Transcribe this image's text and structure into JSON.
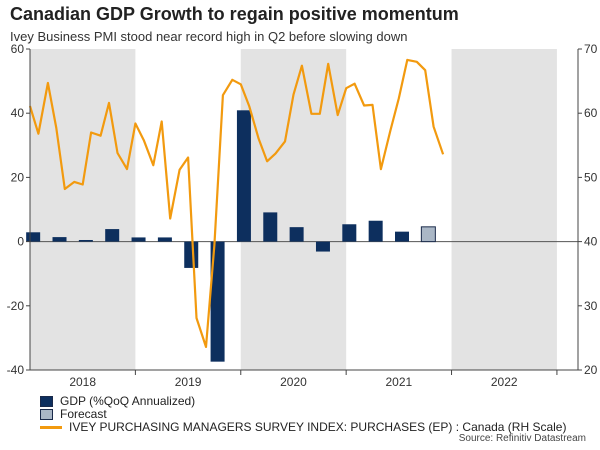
{
  "title": "Canadian GDP Growth to regain positive momentum",
  "subtitle": "Ivey Business PMI stood near record high in Q2 before slowing down",
  "source": "Source: Refinitiv Datastream",
  "colors": {
    "gdp": "#0d2f5e",
    "forecast": "#aab7c6",
    "pmi": "#f29a0f",
    "shade": "#e3e3e3"
  },
  "legend": [
    {
      "key": "gdp",
      "label": "GDP (%QoQ Annualized)"
    },
    {
      "key": "forecast",
      "label": "Forecast"
    },
    {
      "key": "pmi",
      "label": "IVEY PURCHASING MANAGERS SURVEY INDEX: PURCHASES (EP) : Canada (RH Scale)"
    }
  ],
  "chart_data": {
    "type": "bar+line",
    "x_range": [
      2017.5,
      2022.7
    ],
    "left_axis": {
      "ylim": [
        -40,
        60
      ],
      "ticks": [
        -40,
        -20,
        0,
        20,
        40,
        60
      ]
    },
    "right_axis": {
      "ylim": [
        20,
        70
      ],
      "ticks": [
        20,
        30,
        40,
        50,
        60,
        70
      ]
    },
    "year_ticks": [
      "2018",
      "2019",
      "2020",
      "2021",
      "2022"
    ],
    "shaded_years": [
      2018,
      2020,
      2022
    ],
    "gdp_bars": [
      {
        "t": 2017.53,
        "v": 2.9
      },
      {
        "t": 2017.78,
        "v": 1.4
      },
      {
        "t": 2018.03,
        "v": 0.5
      },
      {
        "t": 2018.28,
        "v": 3.9
      },
      {
        "t": 2018.53,
        "v": 1.3
      },
      {
        "t": 2018.78,
        "v": 1.3
      },
      {
        "t": 2019.03,
        "v": -8.2
      },
      {
        "t": 2019.28,
        "v": -37.4
      },
      {
        "t": 2019.53,
        "v": 40.9
      },
      {
        "t": 2019.78,
        "v": 9.1
      },
      {
        "t": 2020.03,
        "v": 4.5
      },
      {
        "t": 2020.28,
        "v": -3.1
      },
      {
        "t": 2020.53,
        "v": 5.4
      },
      {
        "t": 2020.78,
        "v": 6.5
      },
      {
        "t": 2021.03,
        "v": 3.1
      },
      {
        "t": 2021.28,
        "v": 4.6,
        "forecast": true
      }
    ],
    "pmi_series": {
      "name": "IVEY PURCHASING MANAGERS SURVEY INDEX: PURCHASES (EP) : Canada (RH Scale)",
      "points": [
        [
          2017.5,
          61.1
        ],
        [
          2017.58,
          56.8
        ],
        [
          2017.67,
          64.7
        ],
        [
          2017.75,
          57.7
        ],
        [
          2017.83,
          48.2
        ],
        [
          2017.92,
          49.3
        ],
        [
          2018.0,
          48.9
        ],
        [
          2018.08,
          57.0
        ],
        [
          2018.17,
          56.5
        ],
        [
          2018.25,
          61.6
        ],
        [
          2018.33,
          53.8
        ],
        [
          2018.42,
          51.3
        ],
        [
          2018.5,
          58.4
        ],
        [
          2018.58,
          55.8
        ],
        [
          2018.67,
          51.9
        ],
        [
          2018.75,
          58.7
        ],
        [
          2018.83,
          43.6
        ],
        [
          2018.92,
          51.2
        ],
        [
          2019.0,
          53.1
        ],
        [
          2019.08,
          28.1
        ],
        [
          2019.17,
          23.6
        ],
        [
          2019.25,
          39.5
        ],
        [
          2019.33,
          62.8
        ],
        [
          2019.42,
          65.2
        ],
        [
          2019.5,
          64.5
        ],
        [
          2019.58,
          61.1
        ],
        [
          2019.67,
          56.0
        ],
        [
          2019.75,
          52.5
        ],
        [
          2019.83,
          53.7
        ],
        [
          2019.92,
          55.6
        ],
        [
          2020.0,
          62.9
        ],
        [
          2020.08,
          67.4
        ],
        [
          2020.17,
          59.9
        ],
        [
          2020.25,
          59.9
        ],
        [
          2020.33,
          67.7
        ],
        [
          2020.42,
          59.7
        ],
        [
          2020.5,
          63.9
        ],
        [
          2020.58,
          64.6
        ],
        [
          2020.67,
          61.2
        ],
        [
          2020.75,
          61.3
        ],
        [
          2020.83,
          51.3
        ],
        [
          2020.92,
          57.3
        ],
        [
          2021.0,
          62.3
        ],
        [
          2021.08,
          68.3
        ],
        [
          2021.17,
          68.0
        ],
        [
          2021.25,
          66.7
        ],
        [
          2021.33,
          57.9
        ],
        [
          2021.42,
          53.6
        ]
      ]
    }
  }
}
